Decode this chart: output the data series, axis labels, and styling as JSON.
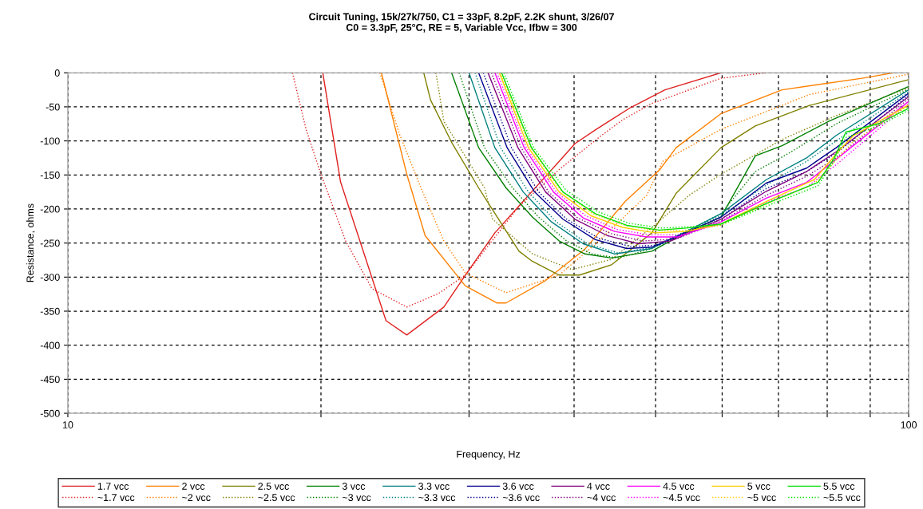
{
  "chart_data": {
    "type": "line",
    "title": "Circuit Tuning, 15k/27k/750, C1 = 33pF, 8.2pF, 2.2K shunt, 3/26/07\nC0 = 3.3pF, 25°C, RE = 5, Variable Vcc, Ifbw = 300",
    "xlabel": "Frequency, Hz",
    "ylabel": "Resistance, ohms",
    "log": "x",
    "xlim": [
      10,
      100
    ],
    "xticks": [
      10,
      {
        "value": 20,
        "label": null
      },
      {
        "value": 30,
        "label": null
      },
      {
        "value": 40,
        "label": null
      },
      {
        "value": 50,
        "label": null
      },
      {
        "value": 60,
        "label": null
      },
      {
        "value": 70,
        "label": null
      },
      {
        "value": 80,
        "label": null
      },
      {
        "value": 90,
        "label": null
      },
      100
    ],
    "ylim": [
      -500,
      0
    ],
    "yticks": [
      -500,
      -450,
      -400,
      -350,
      -300,
      -250,
      -200,
      -150,
      -100,
      -50,
      0
    ],
    "grid": true,
    "legend": "bottom",
    "marker": "none",
    "series": [
      {
        "name": "1.7 vcc",
        "color": "#e02020",
        "line_style": "solid",
        "x": [
          20.1,
          21.1,
          23.9,
          25.3,
          28.0,
          29.7,
          32.2,
          35.3,
          38.4,
          40.1,
          42.5,
          46.7,
          51.3,
          59.8
        ],
        "values": [
          0,
          -160,
          -364,
          -385,
          -344,
          -297,
          -235,
          -180,
          -130,
          -104,
          -83,
          -51,
          -25,
          0
        ]
      },
      {
        "name": "~1.7 vcc",
        "color": "#e02020",
        "line_style": "dotted",
        "x": [
          18.5,
          19.2,
          20.0,
          21.4,
          23.0,
          25.3,
          27.6,
          29.7,
          34.4,
          38.4,
          42.8,
          45.7,
          49.5,
          59.8,
          67.7
        ],
        "values": [
          0,
          -83,
          -149,
          -247,
          -317,
          -344,
          -324,
          -297,
          -196,
          -142,
          -95,
          -69,
          -45,
          -8,
          0
        ]
      },
      {
        "name": "2 vcc",
        "color": "#ff8000",
        "line_style": "solid",
        "x": [
          23.6,
          25.3,
          26.6,
          29.7,
          32.4,
          33.2,
          36.9,
          41.2,
          46.0,
          50.6,
          52.9,
          59.8,
          70.7,
          88,
          96
        ],
        "values": [
          0,
          -149,
          -239,
          -313,
          -338,
          -338,
          -306,
          -259,
          -189,
          -142,
          -110,
          -60,
          -25,
          -8,
          0
        ]
      },
      {
        "name": "~2 vcc",
        "color": "#ff8000",
        "line_style": "dotted",
        "x": [
          23.5,
          24.8,
          26.3,
          28.0,
          29.7,
          33.2,
          38.4,
          42.8,
          48.8,
          51.0,
          59.8,
          76.2,
          100
        ],
        "values": [
          0,
          -90,
          -169,
          -247,
          -294,
          -323,
          -297,
          -247,
          -180,
          -130,
          -83,
          -32,
          -2
        ]
      },
      {
        "name": "2.5 vcc",
        "color": "#808000",
        "line_style": "solid",
        "x": [
          26.5,
          27.0,
          28.6,
          30.8,
          34.4,
          35.7,
          38.4,
          40.6,
          44.3,
          49.5,
          52.9,
          59.8,
          65.7,
          76.2,
          100
        ],
        "values": [
          0,
          -40,
          -102,
          -169,
          -262,
          -277,
          -297,
          -297,
          -282,
          -235,
          -177,
          -110,
          -78,
          -48,
          -10
        ]
      },
      {
        "name": "~2.5 vcc",
        "color": "#808000",
        "line_style": "dotted",
        "x": [
          27.4,
          28.0,
          31.3,
          32.0,
          35.7,
          39.8,
          44.3,
          49.5,
          54.8,
          59.8,
          70.7,
          82,
          100
        ],
        "values": [
          0,
          -71,
          -169,
          -215,
          -266,
          -289,
          -274,
          -227,
          -180,
          -149,
          -98,
          -63,
          -22
        ]
      },
      {
        "name": "3 vcc",
        "color": "#008000",
        "line_style": "solid",
        "x": [
          28.6,
          30.8,
          33.2,
          35.7,
          38.4,
          41.2,
          44.3,
          49.5,
          52.9,
          59.8,
          65.7,
          70.7,
          80.4,
          100
        ],
        "values": [
          0,
          -110,
          -169,
          -212,
          -247,
          -266,
          -272,
          -262,
          -242,
          -212,
          -122,
          -107,
          -71,
          -20
        ]
      },
      {
        "name": "~3 vcc",
        "color": "#008000",
        "line_style": "dotted",
        "x": [
          29.2,
          31.3,
          33.8,
          36.3,
          39.2,
          42.0,
          45.2,
          49.5,
          59.8,
          65.7,
          72.3,
          82,
          100
        ],
        "values": [
          0,
          -110,
          -169,
          -212,
          -247,
          -266,
          -272,
          -258,
          -207,
          -145,
          -117,
          -75,
          -24
        ]
      },
      {
        "name": "3.3 vcc",
        "color": "#008080",
        "line_style": "solid",
        "x": [
          30.0,
          32.2,
          34.8,
          37.6,
          41.0,
          44.7,
          49.5,
          54.4,
          59.8,
          67.7,
          75.6,
          82,
          100
        ],
        "values": [
          0,
          -110,
          -175,
          -219,
          -251,
          -266,
          -258,
          -233,
          -207,
          -157,
          -125,
          -92,
          -25
        ]
      },
      {
        "name": "~3.3 vcc",
        "color": "#008080",
        "line_style": "dotted",
        "x": [
          30.5,
          32.7,
          35.3,
          38.1,
          41.5,
          45.2,
          49.5,
          54.4,
          59.8,
          67.7,
          75.6,
          82,
          100
        ],
        "values": [
          0,
          -110,
          -175,
          -219,
          -251,
          -265,
          -256,
          -232,
          -210,
          -165,
          -130,
          -100,
          -28
        ]
      },
      {
        "name": "3.6 vcc",
        "color": "#000090",
        "line_style": "solid",
        "x": [
          30.8,
          33.3,
          35.9,
          38.8,
          42.4,
          46.2,
          49.5,
          59.8,
          67.7,
          75.6,
          82,
          100
        ],
        "values": [
          0,
          -110,
          -175,
          -215,
          -245,
          -258,
          -256,
          -212,
          -162,
          -140,
          -110,
          -30
        ]
      },
      {
        "name": "~3.6 vcc",
        "color": "#000090",
        "line_style": "dotted",
        "x": [
          31.2,
          33.7,
          36.3,
          39.2,
          42.8,
          46.7,
          50.5,
          59.8,
          67.7,
          75.6,
          82,
          100
        ],
        "values": [
          0,
          -110,
          -175,
          -215,
          -243,
          -255,
          -253,
          -215,
          -170,
          -145,
          -118,
          -33
        ]
      },
      {
        "name": "4 vcc",
        "color": "#800080",
        "line_style": "solid",
        "x": [
          31.6,
          34.3,
          37.0,
          40.1,
          43.8,
          47.7,
          52.1,
          59.8,
          67.7,
          75.6,
          82,
          100
        ],
        "values": [
          0,
          -110,
          -175,
          -215,
          -239,
          -251,
          -247,
          -215,
          -174,
          -145,
          -116,
          -35
        ]
      },
      {
        "name": "~4 vcc",
        "color": "#800080",
        "line_style": "dotted",
        "x": [
          31.9,
          34.6,
          37.3,
          40.4,
          44.2,
          48.3,
          52.9,
          59.8,
          67.7,
          75.6,
          82,
          100
        ],
        "values": [
          0,
          -110,
          -175,
          -213,
          -236,
          -247,
          -244,
          -218,
          -180,
          -152,
          -125,
          -38
        ]
      },
      {
        "name": "4.5 vcc",
        "color": "#ff00ff",
        "line_style": "solid",
        "x": [
          32.2,
          34.9,
          37.8,
          41.0,
          44.7,
          48.8,
          53.2,
          59.8,
          67.7,
          75.6,
          82,
          100
        ],
        "values": [
          0,
          -110,
          -175,
          -213,
          -233,
          -241,
          -241,
          -219,
          -184,
          -161,
          -127,
          -42
        ]
      },
      {
        "name": "~4.5 vcc",
        "color": "#ff00ff",
        "line_style": "dotted",
        "x": [
          32.4,
          35.1,
          38.1,
          41.3,
          45.0,
          49.2,
          53.6,
          59.8,
          67.7,
          75.6,
          82,
          100
        ],
        "values": [
          0,
          -110,
          -175,
          -210,
          -230,
          -238,
          -238,
          -222,
          -190,
          -168,
          -135,
          -45
        ]
      },
      {
        "name": "5 vcc",
        "color": "#ffcc00",
        "line_style": "solid",
        "x": [
          32.6,
          35.3,
          38.4,
          41.9,
          45.7,
          49.9,
          54.4,
          59.8,
          67.7,
          77.2,
          82.4,
          86,
          100
        ],
        "values": [
          0,
          -110,
          -175,
          -210,
          -227,
          -235,
          -233,
          -222,
          -189,
          -157,
          -116,
          -92,
          -47
        ]
      },
      {
        "name": "~5 vcc",
        "color": "#ffcc00",
        "line_style": "dotted",
        "x": [
          32.7,
          35.5,
          38.6,
          42.1,
          46.0,
          50.2,
          54.8,
          59.8,
          67.7,
          77.2,
          82.4,
          86,
          100
        ],
        "values": [
          0,
          -110,
          -173,
          -207,
          -224,
          -232,
          -231,
          -224,
          -193,
          -163,
          -125,
          -100,
          -48
        ]
      },
      {
        "name": "5.5 vcc",
        "color": "#00e000",
        "line_style": "solid",
        "x": [
          32.8,
          35.6,
          38.8,
          42.4,
          46.2,
          50.5,
          54.4,
          59.8,
          67.7,
          78,
          81.5,
          84.2,
          92,
          100
        ],
        "values": [
          0,
          -110,
          -175,
          -207,
          -224,
          -231,
          -228,
          -222,
          -192,
          -161,
          -126,
          -87,
          -75,
          -52
        ]
      },
      {
        "name": "~5.5 vcc",
        "color": "#00e000",
        "line_style": "dotted",
        "x": [
          33.0,
          35.8,
          39.1,
          42.7,
          46.5,
          50.8,
          55,
          59.8,
          67.7,
          78,
          81.5,
          84.2,
          92,
          100
        ],
        "values": [
          0,
          -110,
          -172,
          -204,
          -221,
          -228,
          -226,
          -223,
          -196,
          -166,
          -130,
          -95,
          -78,
          -55
        ]
      }
    ]
  }
}
